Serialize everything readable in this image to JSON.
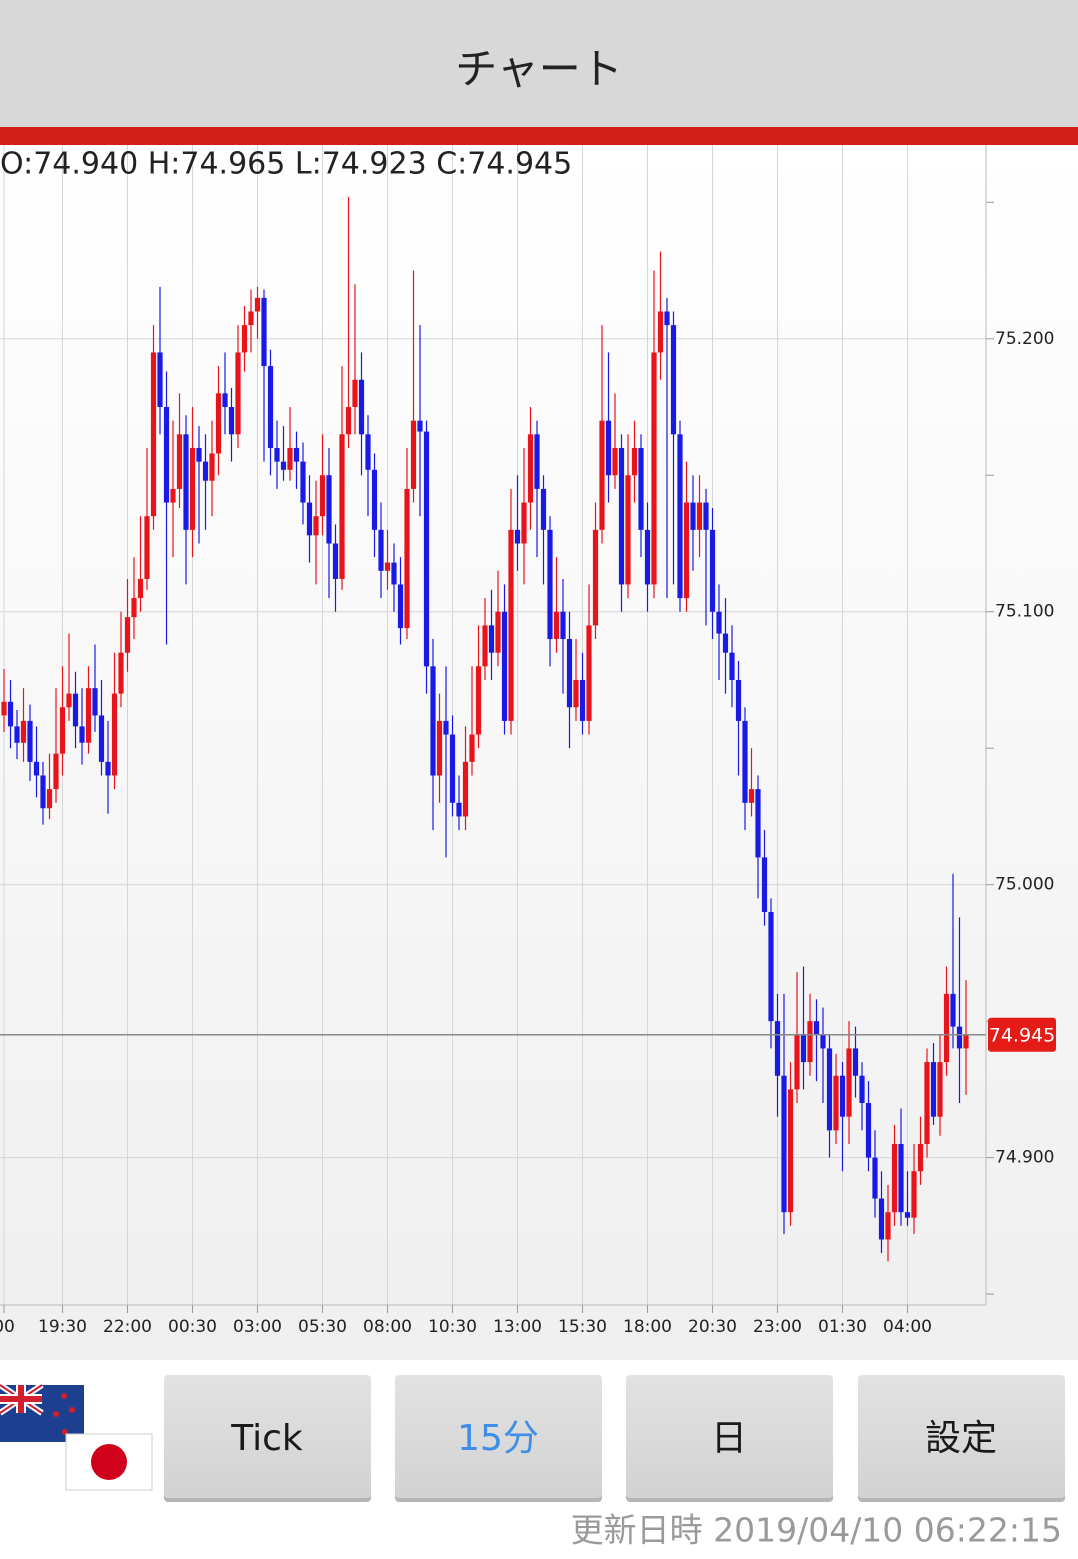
{
  "header": {
    "title": "チャート"
  },
  "chart_data": {
    "type": "candlestick",
    "ohlc_header": "O:74.940 H:74.965 L:74.923 C:74.945",
    "categories": [
      "00",
      null,
      null,
      null,
      null,
      null,
      null,
      null,
      null,
      "19:30",
      null,
      null,
      null,
      null,
      null,
      null,
      null,
      null,
      null,
      "22:00",
      null,
      null,
      null,
      null,
      null,
      null,
      null,
      null,
      null,
      "00:30",
      null,
      null,
      null,
      null,
      null,
      null,
      null,
      null,
      null,
      "03:00",
      null,
      null,
      null,
      null,
      null,
      null,
      null,
      null,
      null,
      "05:30",
      null,
      null,
      null,
      null,
      null,
      null,
      null,
      null,
      null,
      "08:00",
      null,
      null,
      null,
      null,
      null,
      null,
      null,
      null,
      null,
      "10:30",
      null,
      null,
      null,
      null,
      null,
      null,
      null,
      null,
      null,
      "13:00",
      null,
      null,
      null,
      null,
      null,
      null,
      null,
      null,
      null,
      "15:30",
      null,
      null,
      null,
      null,
      null,
      null,
      null,
      null,
      null,
      "18:00",
      null,
      null,
      null,
      null,
      null,
      null,
      null,
      null,
      null,
      "20:30",
      null,
      null,
      null,
      null,
      null,
      null,
      null,
      null,
      null,
      "23:00",
      null,
      null,
      null,
      null,
      null,
      null,
      null,
      null,
      null,
      "01:30",
      null,
      null,
      null,
      null,
      null,
      null,
      null,
      null,
      null,
      "04:00",
      null,
      null,
      null,
      null,
      null,
      null,
      null,
      null,
      null
    ],
    "open": [
      75.062,
      75.067,
      75.058,
      75.052,
      75.06,
      75.045,
      75.04,
      75.028,
      75.035,
      75.048,
      75.065,
      75.07,
      75.058,
      75.052,
      75.072,
      75.062,
      75.045,
      75.04,
      75.07,
      75.085,
      75.098,
      75.105,
      75.112,
      75.135,
      75.195,
      75.175,
      75.14,
      75.145,
      75.165,
      75.13,
      75.16,
      75.155,
      75.148,
      75.158,
      75.18,
      75.175,
      75.165,
      75.195,
      75.205,
      75.21,
      75.215,
      75.19,
      75.16,
      75.155,
      75.152,
      75.16,
      75.155,
      75.14,
      75.128,
      75.135,
      75.15,
      75.125,
      75.112,
      75.165,
      75.175,
      75.185,
      75.165,
      75.152,
      75.13,
      75.115,
      75.118,
      75.11,
      75.094,
      75.145,
      75.17,
      75.166,
      75.08,
      75.04,
      75.06,
      75.055,
      75.03,
      75.025,
      75.045,
      75.055,
      75.08,
      75.095,
      75.085,
      75.1,
      75.06,
      75.13,
      75.125,
      75.14,
      75.165,
      75.145,
      75.13,
      75.09,
      75.1,
      75.09,
      75.065,
      75.075,
      75.06,
      75.095,
      75.13,
      75.17,
      75.15,
      75.16,
      75.11,
      75.15,
      75.16,
      75.13,
      75.11,
      75.195,
      75.21,
      75.205,
      75.165,
      75.105,
      75.14,
      75.13,
      75.14,
      75.13,
      75.1,
      75.092,
      75.085,
      75.075,
      75.06,
      75.03,
      75.035,
      75.01,
      74.99,
      74.95,
      74.93,
      74.88,
      74.925,
      74.945,
      74.935,
      74.95,
      74.945,
      74.94,
      74.91,
      74.93,
      74.915,
      74.94,
      74.93,
      74.92,
      74.9,
      74.885,
      74.87,
      74.88,
      74.905,
      74.88,
      74.878,
      74.895,
      74.905,
      74.935,
      74.915,
      74.935,
      74.96,
      74.948,
      74.94
    ],
    "high": [
      75.079,
      75.075,
      75.064,
      75.072,
      75.066,
      75.058,
      75.045,
      75.048,
      75.072,
      75.08,
      75.092,
      75.078,
      75.072,
      75.08,
      75.088,
      75.075,
      75.06,
      75.085,
      75.1,
      75.112,
      75.12,
      75.135,
      75.16,
      75.205,
      75.219,
      75.188,
      75.17,
      75.18,
      75.172,
      75.175,
      75.168,
      75.165,
      75.17,
      75.19,
      75.195,
      75.182,
      75.205,
      75.212,
      75.218,
      75.219,
      75.218,
      75.196,
      75.17,
      75.168,
      75.175,
      75.166,
      75.162,
      75.15,
      75.148,
      75.165,
      75.16,
      75.132,
      75.19,
      75.252,
      75.22,
      75.195,
      75.172,
      75.158,
      75.14,
      75.13,
      75.125,
      75.12,
      75.16,
      75.225,
      75.205,
      75.17,
      75.09,
      75.07,
      75.08,
      75.062,
      75.04,
      75.058,
      75.08,
      75.095,
      75.105,
      75.108,
      75.115,
      75.11,
      75.145,
      75.15,
      75.16,
      75.175,
      75.17,
      75.15,
      75.135,
      75.12,
      75.112,
      75.1,
      75.09,
      75.085,
      75.11,
      75.14,
      75.205,
      75.195,
      75.18,
      75.165,
      75.165,
      75.17,
      75.165,
      75.14,
      75.225,
      75.232,
      75.215,
      75.21,
      75.17,
      75.155,
      75.15,
      75.15,
      75.145,
      75.138,
      75.11,
      75.105,
      75.095,
      75.082,
      75.065,
      75.05,
      75.04,
      75.02,
      74.995,
      74.96,
      74.96,
      74.935,
      74.968,
      74.97,
      74.96,
      74.958,
      74.955,
      74.945,
      74.938,
      74.935,
      74.95,
      74.948,
      74.935,
      74.928,
      74.91,
      74.895,
      74.89,
      74.912,
      74.918,
      74.895,
      74.905,
      74.915,
      74.94,
      74.942,
      74.945,
      74.97,
      75.004,
      74.988,
      74.965
    ],
    "low": [
      75.056,
      75.05,
      75.046,
      75.045,
      75.038,
      75.032,
      75.022,
      75.024,
      75.03,
      75.04,
      75.06,
      75.05,
      75.044,
      75.048,
      75.056,
      75.04,
      75.026,
      75.035,
      75.065,
      75.078,
      75.09,
      75.1,
      75.108,
      75.13,
      75.165,
      75.088,
      75.12,
      75.138,
      75.11,
      75.12,
      75.125,
      75.13,
      75.135,
      75.15,
      75.165,
      75.155,
      75.16,
      75.188,
      75.195,
      75.2,
      75.155,
      75.15,
      75.145,
      75.148,
      75.148,
      75.145,
      75.132,
      75.118,
      75.11,
      75.128,
      75.105,
      75.1,
      75.108,
      75.16,
      75.165,
      75.15,
      75.135,
      75.12,
      75.105,
      75.108,
      75.1,
      75.088,
      75.09,
      75.14,
      75.135,
      75.07,
      75.02,
      75.03,
      75.01,
      75.025,
      75.02,
      75.02,
      75.04,
      75.05,
      75.075,
      75.075,
      75.08,
      75.055,
      75.055,
      75.115,
      75.11,
      75.13,
      75.12,
      75.11,
      75.08,
      75.085,
      75.07,
      75.05,
      75.06,
      75.055,
      75.055,
      75.09,
      75.125,
      75.14,
      75.145,
      75.1,
      75.105,
      75.14,
      75.12,
      75.1,
      75.105,
      75.185,
      75.105,
      75.11,
      75.1,
      75.1,
      75.115,
      75.12,
      75.095,
      75.09,
      75.075,
      75.07,
      75.065,
      75.04,
      75.02,
      75.025,
      74.995,
      74.985,
      74.94,
      74.915,
      74.872,
      74.875,
      74.92,
      74.925,
      74.93,
      74.928,
      74.92,
      74.9,
      74.905,
      74.895,
      74.905,
      74.922,
      74.91,
      74.895,
      74.878,
      74.865,
      74.862,
      74.875,
      74.875,
      74.875,
      74.872,
      74.89,
      74.9,
      74.912,
      74.908,
      74.93,
      74.94,
      74.92,
      74.923
    ],
    "close": [
      75.067,
      75.058,
      75.052,
      75.06,
      75.045,
      75.04,
      75.028,
      75.035,
      75.048,
      75.065,
      75.07,
      75.058,
      75.052,
      75.072,
      75.062,
      75.045,
      75.04,
      75.07,
      75.085,
      75.098,
      75.105,
      75.112,
      75.135,
      75.195,
      75.175,
      75.14,
      75.145,
      75.165,
      75.13,
      75.16,
      75.155,
      75.148,
      75.158,
      75.18,
      75.175,
      75.165,
      75.195,
      75.205,
      75.21,
      75.215,
      75.19,
      75.16,
      75.155,
      75.152,
      75.16,
      75.155,
      75.14,
      75.128,
      75.135,
      75.15,
      75.125,
      75.112,
      75.165,
      75.175,
      75.185,
      75.165,
      75.152,
      75.13,
      75.115,
      75.118,
      75.11,
      75.094,
      75.145,
      75.17,
      75.166,
      75.08,
      75.04,
      75.06,
      75.055,
      75.03,
      75.025,
      75.045,
      75.055,
      75.08,
      75.095,
      75.085,
      75.1,
      75.06,
      75.13,
      75.125,
      75.14,
      75.165,
      75.145,
      75.13,
      75.09,
      75.1,
      75.09,
      75.065,
      75.075,
      75.06,
      75.095,
      75.13,
      75.17,
      75.15,
      75.16,
      75.11,
      75.15,
      75.16,
      75.13,
      75.11,
      75.195,
      75.21,
      75.205,
      75.165,
      75.105,
      75.14,
      75.13,
      75.14,
      75.13,
      75.1,
      75.092,
      75.085,
      75.075,
      75.06,
      75.03,
      75.035,
      75.01,
      74.99,
      74.95,
      74.93,
      74.88,
      74.925,
      74.945,
      74.935,
      74.95,
      74.945,
      74.94,
      74.91,
      74.93,
      74.915,
      74.94,
      74.93,
      74.92,
      74.9,
      74.885,
      74.87,
      74.88,
      74.905,
      74.88,
      74.878,
      74.895,
      74.905,
      74.935,
      74.915,
      74.935,
      74.96,
      74.948,
      74.94,
      74.945
    ],
    "up_color": "#e8141c",
    "down_color": "#1a1ae6",
    "ylim": [
      74.846,
      75.271
    ],
    "yticks": [
      {
        "value": 74.9,
        "label": "74.900"
      },
      {
        "value": 75.0,
        "label": "75.000"
      },
      {
        "value": 75.1,
        "label": "75.100"
      },
      {
        "value": 75.2,
        "label": "75.200"
      }
    ],
    "minor_yticks": [
      74.85,
      74.95,
      75.05,
      75.15,
      75.25
    ],
    "last_price": {
      "value": 74.945,
      "label": "74.945"
    },
    "grid": true
  },
  "buttons": [
    {
      "label": "Tick",
      "selected": false
    },
    {
      "label": "15分",
      "selected": true
    },
    {
      "label": "日",
      "selected": false
    },
    {
      "label": "設定",
      "selected": false
    }
  ],
  "footer": {
    "updated": "更新日時 2019/04/10 06:22:15"
  }
}
